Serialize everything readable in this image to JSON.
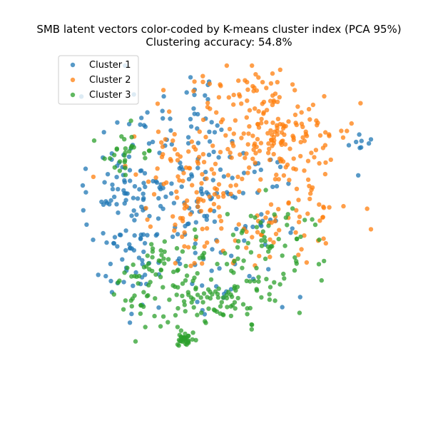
{
  "chart_data": {
    "type": "scatter",
    "title": "SMB latent vectors color-coded by K-means cluster index (PCA 95%)",
    "subtitle": "Clustering accuracy: 54.8%",
    "axes_visible": false,
    "grid": false,
    "legend_position": "top-left",
    "xlim": [
      -1,
      1
    ],
    "ylim": [
      -1,
      1
    ],
    "series": [
      {
        "name": "Cluster 1",
        "color": "#1f77b4",
        "regions": [
          {
            "cx": -0.62,
            "cy": 0.05,
            "sx": 0.12,
            "sy": 0.38,
            "n": 120
          },
          {
            "cx": -0.05,
            "cy": 0.1,
            "sx": 0.3,
            "sy": 0.2,
            "n": 100
          },
          {
            "cx": -0.15,
            "cy": 0.58,
            "sx": 0.15,
            "sy": 0.18,
            "n": 40
          },
          {
            "cx": 0.05,
            "cy": -0.45,
            "sx": 0.22,
            "sy": 0.12,
            "n": 25
          },
          {
            "cx": 0.95,
            "cy": 0.48,
            "sx": 0.04,
            "sy": 0.06,
            "n": 8
          }
        ]
      },
      {
        "name": "Cluster 2",
        "color": "#ff7f0e",
        "regions": [
          {
            "cx": 0.35,
            "cy": 0.55,
            "sx": 0.28,
            "sy": 0.18,
            "n": 170
          },
          {
            "cx": 0.5,
            "cy": 0.05,
            "sx": 0.18,
            "sy": 0.18,
            "n": 60
          },
          {
            "cx": -0.25,
            "cy": 0.25,
            "sx": 0.2,
            "sy": 0.18,
            "n": 60
          },
          {
            "cx": -0.05,
            "cy": -0.08,
            "sx": 0.18,
            "sy": 0.14,
            "n": 50
          },
          {
            "cx": 0.15,
            "cy": 0.82,
            "sx": 0.18,
            "sy": 0.06,
            "n": 25
          }
        ]
      },
      {
        "name": "Cluster 3",
        "color": "#2ca02c",
        "regions": [
          {
            "cx": -0.12,
            "cy": -0.5,
            "sx": 0.28,
            "sy": 0.15,
            "n": 160
          },
          {
            "cx": 0.35,
            "cy": -0.2,
            "sx": 0.2,
            "sy": 0.15,
            "n": 50
          },
          {
            "cx": -0.62,
            "cy": 0.4,
            "sx": 0.1,
            "sy": 0.08,
            "n": 28
          },
          {
            "cx": -0.45,
            "cy": -0.32,
            "sx": 0.08,
            "sy": 0.08,
            "n": 12
          },
          {
            "cx": -0.22,
            "cy": -0.86,
            "sx": 0.025,
            "sy": 0.025,
            "n": 32
          }
        ]
      }
    ]
  }
}
